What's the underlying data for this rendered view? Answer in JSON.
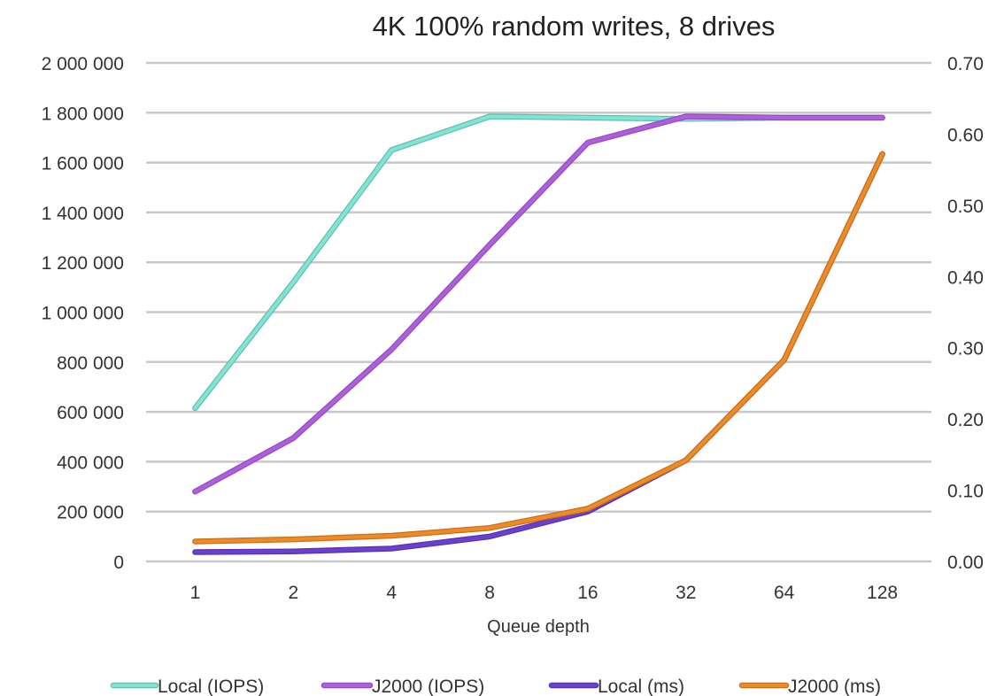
{
  "chart_data": {
    "type": "line",
    "title": "4K 100% random writes, 8 drives",
    "xlabel": "Queue depth",
    "ylabel": "",
    "y2label": "",
    "categories": [
      "1",
      "2",
      "4",
      "8",
      "16",
      "32",
      "64",
      "128"
    ],
    "y_ticks": [
      "0",
      "200 000",
      "400 000",
      "600 000",
      "800 000",
      "1 000 000",
      "1 200 000",
      "1 400 000",
      "1 600 000",
      "1 800 000",
      "2 000 000"
    ],
    "y2_ticks": [
      "0.00",
      "0.10",
      "0.20",
      "0.30",
      "0.40",
      "0.50",
      "0.60",
      "0.70"
    ],
    "ylim": [
      0,
      2000000
    ],
    "y2lim": [
      0,
      0.7
    ],
    "grid": true,
    "legend_position": "bottom",
    "series": [
      {
        "name": "Local (IOPS)",
        "axis": "left",
        "color": "#7fe5d5",
        "values": [
          615000,
          1120000,
          1650000,
          1785000,
          1780000,
          1775000,
          1780000,
          1780000
        ]
      },
      {
        "name": "J2000 (IOPS)",
        "axis": "left",
        "color": "#b05ee0",
        "values": [
          280000,
          495000,
          850000,
          1270000,
          1680000,
          1785000,
          1780000,
          1780000
        ]
      },
      {
        "name": "Local (ms)",
        "axis": "right",
        "color": "#6b3fcf",
        "values": [
          0.013,
          0.014,
          0.018,
          0.035,
          0.07,
          0.142,
          0.283,
          0.572
        ]
      },
      {
        "name": "J2000 (ms)",
        "axis": "right",
        "color": "#f08a24",
        "values": [
          0.028,
          0.031,
          0.036,
          0.047,
          0.074,
          0.142,
          0.283,
          0.572
        ]
      }
    ]
  }
}
